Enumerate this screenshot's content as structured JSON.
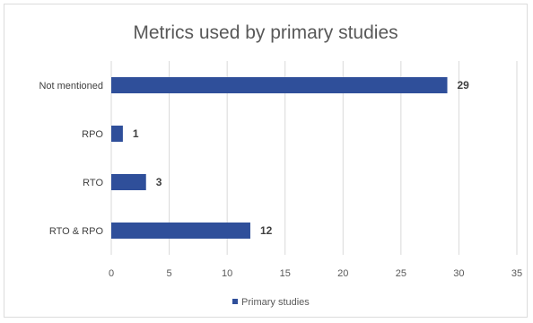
{
  "chart_data": {
    "type": "bar",
    "orientation": "horizontal",
    "title": "Metrics used by primary studies",
    "categories": [
      "Not mentioned",
      "RPO",
      "RTO",
      "RTO & RPO"
    ],
    "series": [
      {
        "name": "Primary studies",
        "values": [
          29,
          1,
          3,
          12
        ],
        "color": "#2f4f9a"
      }
    ],
    "xlim": [
      0,
      35
    ],
    "xticks": [
      "0",
      "5",
      "10",
      "15",
      "20",
      "25",
      "30",
      "35"
    ],
    "grid": true,
    "legend_position": "bottom"
  }
}
